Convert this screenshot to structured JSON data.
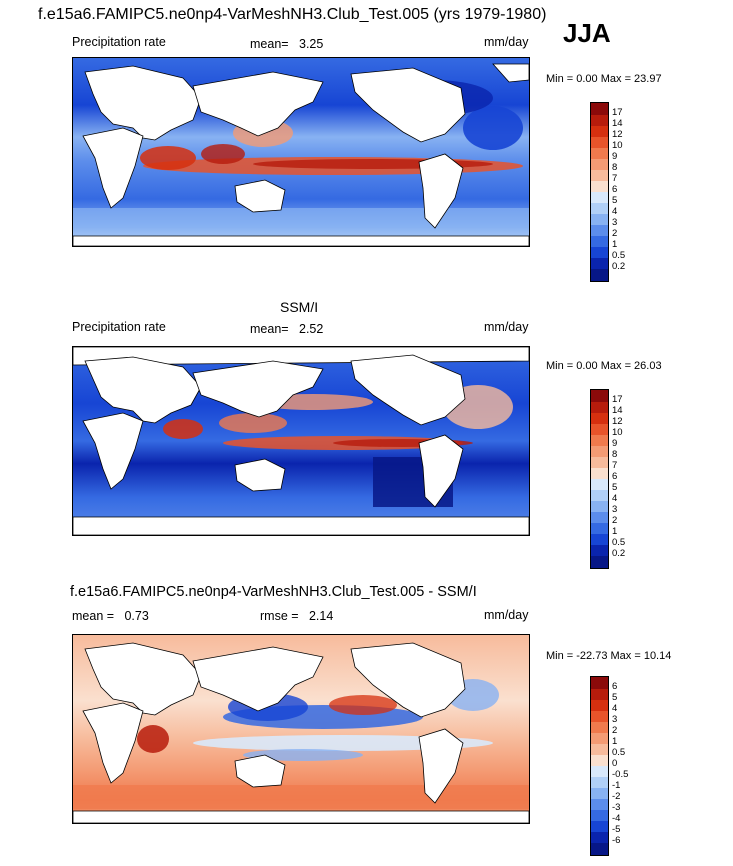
{
  "header": {
    "main_title": "f.e15a6.FAMIPC5.ne0np4-VarMeshNH3.Club_Test.005 (yrs 1979-1980)",
    "season": "JJA"
  },
  "panels": [
    {
      "title": "",
      "field_label": "Precipitation rate",
      "stat_label": "mean=",
      "stat_value": "3.25",
      "stat2_label": "",
      "stat2_value": "",
      "units": "mm/day",
      "range_text": "Min =   0.00 Max =  23.97",
      "legend_levels": [
        "17",
        "14",
        "12",
        "10",
        "9",
        "8",
        "7",
        "6",
        "5",
        "4",
        "3",
        "2",
        "1",
        "0.5",
        "0.2"
      ],
      "legend_colors": [
        "#8b0a0a",
        "#b71c0c",
        "#d6300f",
        "#e8542a",
        "#f07a4d",
        "#f49b74",
        "#f7bb9c",
        "#fae0cf",
        "#d9e9fb",
        "#b1d0f7",
        "#88b2f2",
        "#5c8deb",
        "#356ae2",
        "#1745d4",
        "#0a24ad",
        "#071787"
      ]
    },
    {
      "title": "SSM/I",
      "field_label": "Precipitation rate",
      "stat_label": "mean=",
      "stat_value": "2.52",
      "stat2_label": "",
      "stat2_value": "",
      "units": "mm/day",
      "range_text": "Min =   0.00 Max =  26.03",
      "legend_levels": [
        "17",
        "14",
        "12",
        "10",
        "9",
        "8",
        "7",
        "6",
        "5",
        "4",
        "3",
        "2",
        "1",
        "0.5",
        "0.2"
      ],
      "legend_colors": [
        "#8b0a0a",
        "#b71c0c",
        "#d6300f",
        "#e8542a",
        "#f07a4d",
        "#f49b74",
        "#f7bb9c",
        "#fae0cf",
        "#d9e9fb",
        "#b1d0f7",
        "#88b2f2",
        "#5c8deb",
        "#356ae2",
        "#1745d4",
        "#0a24ad",
        "#071787"
      ]
    },
    {
      "title": "f.e15a6.FAMIPC5.ne0np4-VarMeshNH3.Club_Test.005 - SSM/I",
      "field_label": "",
      "stat_label": "mean =",
      "stat_value": "0.73",
      "stat2_label": "rmse =",
      "stat2_value": "2.14",
      "units": "mm/day",
      "range_text": "Min = -22.73 Max =  10.14",
      "legend_levels": [
        "6",
        "5",
        "4",
        "3",
        "2",
        "1",
        "0.5",
        "0",
        "-0.5",
        "-1",
        "-2",
        "-3",
        "-4",
        "-5",
        "-6"
      ],
      "legend_colors": [
        "#8b0a0a",
        "#b71c0c",
        "#d6300f",
        "#e8542a",
        "#f07a4d",
        "#f49b74",
        "#f7bb9c",
        "#fae0cf",
        "#d9e9fb",
        "#b1d0f7",
        "#88b2f2",
        "#5c8deb",
        "#356ae2",
        "#1745d4",
        "#0a24ad",
        "#071787"
      ]
    }
  ]
}
